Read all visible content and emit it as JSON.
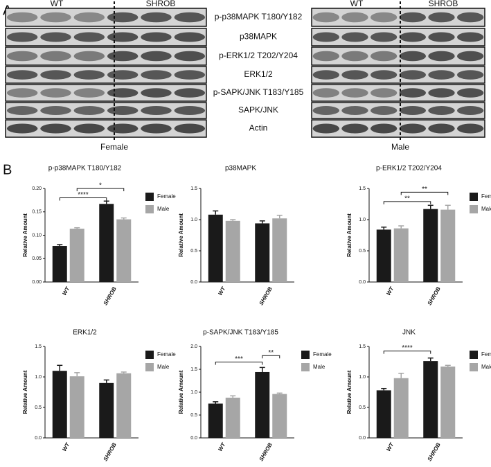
{
  "panel_a": {
    "label": "A",
    "left_blot": {
      "headers": [
        "WT",
        "SHROB"
      ],
      "sex": "Female"
    },
    "right_blot": {
      "headers": [
        "WT",
        "SHROB"
      ],
      "sex": "Male"
    },
    "proteins": [
      "p-p38MAPK T180/Y182",
      "p38MAPK",
      "p-ERK1/2 T202/Y204",
      "ERK1/2",
      "p-SAPK/JNK T183/Y185",
      "SAPK/JNK",
      "Actin"
    ]
  },
  "panel_b": {
    "label": "B"
  },
  "chart_data": [
    {
      "type": "bar",
      "title": "p-p38MAPK T180/Y182",
      "y_label": "Relative Amount",
      "categories": [
        "WT",
        "SHROB"
      ],
      "series": [
        {
          "name": "Female",
          "color": "#1a1a1a",
          "values": [
            0.077,
            0.167
          ],
          "errors": [
            0.003,
            0.006
          ]
        },
        {
          "name": "Male",
          "color": "#a6a6a6",
          "values": [
            0.114,
            0.134
          ],
          "errors": [
            0.002,
            0.003
          ]
        }
      ],
      "ylim": [
        0,
        0.2
      ],
      "yticks": [
        {
          "value": 0,
          "label": "0.00"
        },
        0.05,
        {
          "value": 0.1,
          "label": "0.10"
        },
        0.15,
        {
          "value": 0.2,
          "label": "0.20"
        }
      ],
      "legend": "right",
      "annotations": [
        "*",
        "****"
      ]
    },
    {
      "type": "bar",
      "title": "p38MAPK",
      "y_label": "Relative Amount",
      "categories": [
        "WT",
        "SHROB"
      ],
      "series": [
        {
          "color": "#1a1a1a",
          "values": [
            1.08,
            0.94
          ],
          "errors": [
            0.06,
            0.04
          ]
        },
        {
          "color": "#a6a6a6",
          "values": [
            0.98,
            1.02
          ],
          "errors": [
            0.02,
            0.05
          ]
        }
      ],
      "ylim": [
        0,
        1.5
      ],
      "yticks": [
        {
          "value": 0,
          "label": "0.0"
        },
        0.5,
        {
          "value": 1,
          "label": "1.0"
        },
        1.5
      ],
      "annotations": []
    },
    {
      "type": "bar",
      "title": "p-ERK1/2 T202/Y204",
      "y_label": "Relative Amount",
      "categories": [
        "WT",
        "SHROB"
      ],
      "series": [
        {
          "name": "Female",
          "color": "#1a1a1a",
          "values": [
            0.84,
            1.17
          ],
          "errors": [
            0.04,
            0.06
          ]
        },
        {
          "name": "Male",
          "color": "#a6a6a6",
          "values": [
            0.86,
            1.16
          ],
          "errors": [
            0.04,
            0.07
          ]
        }
      ],
      "ylim": [
        0,
        1.5
      ],
      "yticks": [
        {
          "value": 0,
          "label": "0.0"
        },
        0.5,
        {
          "value": 1,
          "label": "1.0"
        },
        1.5
      ],
      "legend": "right",
      "annotations": [
        "**",
        "**"
      ]
    },
    {
      "type": "bar",
      "title": "ERK1/2",
      "y_label": "Relative Amount",
      "categories": [
        "WT",
        "SHROB"
      ],
      "series": [
        {
          "name": "Female",
          "color": "#1a1a1a",
          "values": [
            1.1,
            0.9
          ],
          "errors": [
            0.09,
            0.05
          ]
        },
        {
          "name": "Male",
          "color": "#a6a6a6",
          "values": [
            1.01,
            1.06
          ],
          "errors": [
            0.06,
            0.02
          ]
        }
      ],
      "ylim": [
        0,
        1.5
      ],
      "yticks": [
        {
          "value": 0,
          "label": "0.0"
        },
        0.5,
        {
          "value": 1,
          "label": "1.0"
        },
        1.5
      ],
      "legend": "right",
      "annotations": []
    },
    {
      "type": "bar",
      "title": "p-SAPK/JNK T183/Y185",
      "y_label": "Relative Amount",
      "categories": [
        "WT",
        "SHROB"
      ],
      "series": [
        {
          "name": "Female",
          "color": "#1a1a1a",
          "values": [
            0.75,
            1.44
          ],
          "errors": [
            0.04,
            0.1
          ]
        },
        {
          "name": "Male",
          "color": "#a6a6a6",
          "values": [
            0.88,
            0.96
          ],
          "errors": [
            0.04,
            0.02
          ]
        }
      ],
      "ylim": [
        0,
        2
      ],
      "yticks": [
        {
          "value": 0,
          "label": "0.0"
        },
        0.5,
        {
          "value": 1,
          "label": "1.0"
        },
        1.5,
        {
          "value": 2,
          "label": "2.0"
        }
      ],
      "legend": "right",
      "annotations": [
        "**",
        "***"
      ]
    },
    {
      "type": "bar",
      "title": "JNK",
      "y_label": "Relative Amount",
      "categories": [
        "WT",
        "SHROB"
      ],
      "series": [
        {
          "name": "Female",
          "color": "#1a1a1a",
          "values": [
            0.78,
            1.26
          ],
          "errors": [
            0.03,
            0.05
          ]
        },
        {
          "name": "Male",
          "color": "#a6a6a6",
          "values": [
            0.98,
            1.17
          ],
          "errors": [
            0.08,
            0.02
          ]
        }
      ],
      "ylim": [
        0,
        1.5
      ],
      "yticks": [
        {
          "value": 0,
          "label": "0.0"
        },
        0.5,
        {
          "value": 1,
          "label": "1.0"
        },
        1.5
      ],
      "legend": "right",
      "annotations": [
        "****"
      ]
    }
  ]
}
